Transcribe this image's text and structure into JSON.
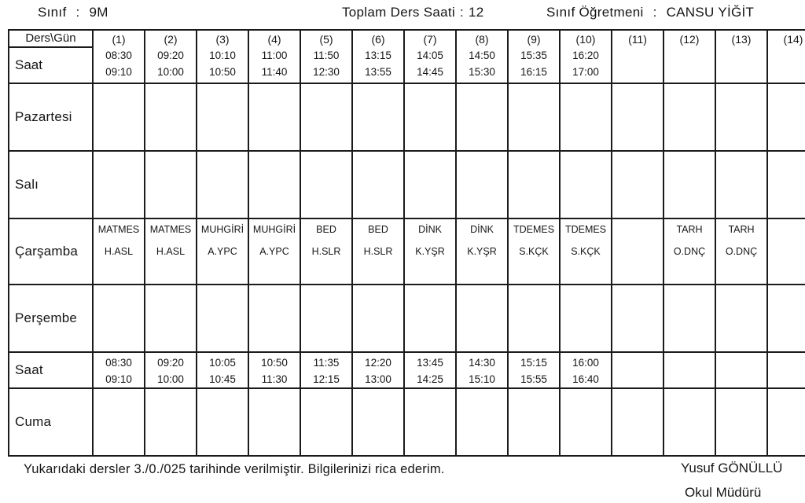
{
  "header": {
    "class_label": "Sınıf",
    "class_sep": ":",
    "class_value": "9M",
    "total_label": "Toplam Ders Saati",
    "total_sep": ":",
    "total_value": "12",
    "teacher_label": "Sınıf Öğretmeni",
    "teacher_sep": ":",
    "teacher_value": "CANSU YİĞİT"
  },
  "table": {
    "corner_label": "Ders\\Gün",
    "saat_label": "Saat",
    "periods": [
      {
        "no": "(1)",
        "t1": "08:30",
        "t2": "09:10"
      },
      {
        "no": "(2)",
        "t1": "09:20",
        "t2": "10:00"
      },
      {
        "no": "(3)",
        "t1": "10:10",
        "t2": "10:50"
      },
      {
        "no": "(4)",
        "t1": "11:00",
        "t2": "11:40"
      },
      {
        "no": "(5)",
        "t1": "11:50",
        "t2": "12:30"
      },
      {
        "no": "(6)",
        "t1": "13:15",
        "t2": "13:55"
      },
      {
        "no": "(7)",
        "t1": "14:05",
        "t2": "14:45"
      },
      {
        "no": "(8)",
        "t1": "14:50",
        "t2": "15:30"
      },
      {
        "no": "(9)",
        "t1": "15:35",
        "t2": "16:15"
      },
      {
        "no": "(10)",
        "t1": "16:20",
        "t2": "17:00"
      },
      {
        "no": "(11)",
        "t1": "",
        "t2": ""
      },
      {
        "no": "(12)",
        "t1": "",
        "t2": ""
      },
      {
        "no": "(13)",
        "t1": "",
        "t2": ""
      },
      {
        "no": "(14)",
        "t1": "",
        "t2": ""
      }
    ],
    "days": [
      {
        "label": "Pazartesi",
        "cells": [
          null,
          null,
          null,
          null,
          null,
          null,
          null,
          null,
          null,
          null,
          null,
          null,
          null,
          null
        ]
      },
      {
        "label": "Salı",
        "cells": [
          null,
          null,
          null,
          null,
          null,
          null,
          null,
          null,
          null,
          null,
          null,
          null,
          null,
          null
        ]
      },
      {
        "label": "Çarşamba",
        "cells": [
          {
            "code": "MATMES",
            "teacher": "H.ASL"
          },
          {
            "code": "MATMES",
            "teacher": "H.ASL"
          },
          {
            "code": "MUHGİRİ",
            "teacher": "A.YPC"
          },
          {
            "code": "MUHGİRİ",
            "teacher": "A.YPC"
          },
          {
            "code": "BED",
            "teacher": "H.SLR"
          },
          {
            "code": "BED",
            "teacher": "H.SLR"
          },
          {
            "code": "DİNK",
            "teacher": "K.YŞR"
          },
          {
            "code": "DİNK",
            "teacher": "K.YŞR"
          },
          {
            "code": "TDEMES",
            "teacher": "S.KÇK"
          },
          {
            "code": "TDEMES",
            "teacher": "S.KÇK"
          },
          null,
          {
            "code": "TARH",
            "teacher": "O.DNÇ"
          },
          {
            "code": "TARH",
            "teacher": "O.DNÇ"
          },
          null
        ]
      },
      {
        "label": "Perşembe",
        "cells": [
          null,
          null,
          null,
          null,
          null,
          null,
          null,
          null,
          null,
          null,
          null,
          null,
          null,
          null
        ]
      },
      {
        "label": "Saat",
        "type": "times",
        "cells": [
          {
            "t1": "08:30",
            "t2": "09:10"
          },
          {
            "t1": "09:20",
            "t2": "10:00"
          },
          {
            "t1": "10:05",
            "t2": "10:45"
          },
          {
            "t1": "10:50",
            "t2": "11:30"
          },
          {
            "t1": "11:35",
            "t2": "12:15"
          },
          {
            "t1": "12:20",
            "t2": "13:00"
          },
          {
            "t1": "13:45",
            "t2": "14:25"
          },
          {
            "t1": "14:30",
            "t2": "15:10"
          },
          {
            "t1": "15:15",
            "t2": "15:55"
          },
          {
            "t1": "16:00",
            "t2": "16:40"
          },
          null,
          null,
          null,
          null
        ]
      },
      {
        "label": "Cuma",
        "cells": [
          null,
          null,
          null,
          null,
          null,
          null,
          null,
          null,
          null,
          null,
          null,
          null,
          null,
          null
        ]
      }
    ]
  },
  "footer": {
    "note": "Yukarıdaki dersler 3./0./025  tarihinde verilmiştir. Bilgilerinizi rica ederim.",
    "signer_name": "Yusuf GÖNÜLLÜ",
    "signer_title": "Okul Müdürü"
  }
}
